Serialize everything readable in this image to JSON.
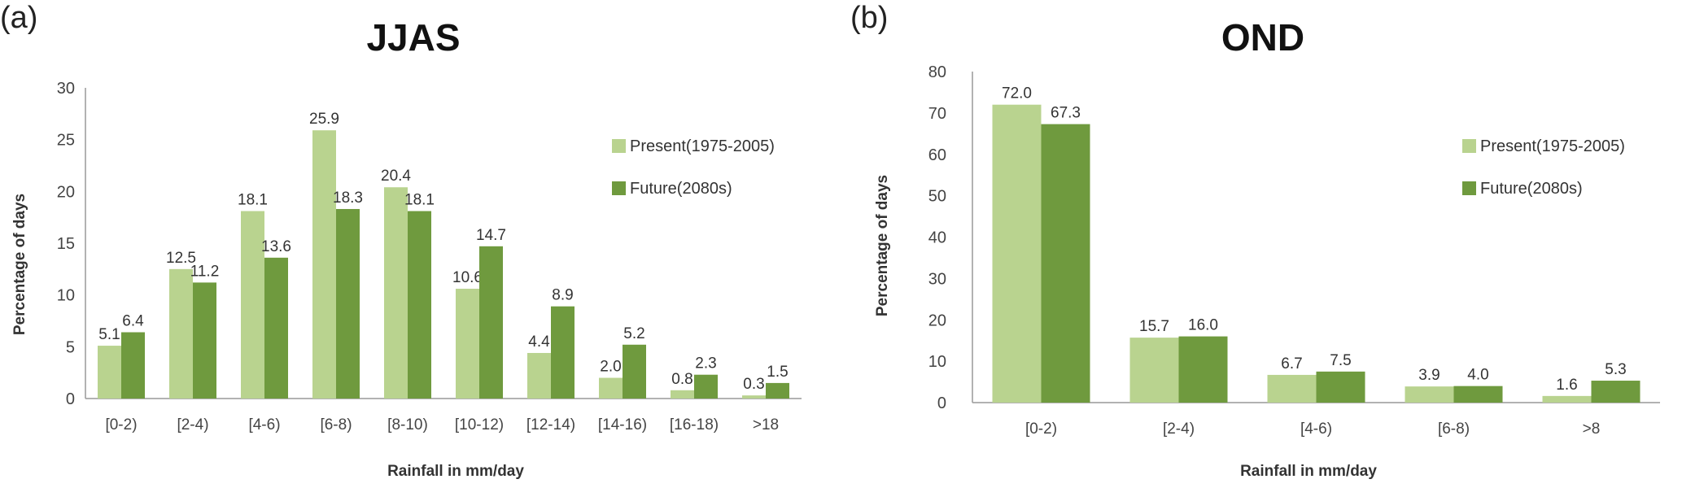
{
  "panels": [
    {
      "label": "(a)"
    },
    {
      "label": "(b)"
    }
  ],
  "chart_data": [
    {
      "type": "bar",
      "title": "JJAS",
      "xlabel": "Rainfall in mm/day",
      "ylabel": "Percentage of days",
      "ylim": [
        0,
        30
      ],
      "yticks": [
        0,
        5,
        10,
        15,
        20,
        25,
        30
      ],
      "categories": [
        "[0-2)",
        "[2-4)",
        "[4-6)",
        "[6-8)",
        "[8-10)",
        "[10-12)",
        "[12-14)",
        "[14-16)",
        "[16-18)",
        ">18"
      ],
      "series": [
        {
          "name": "Present(1975-2005)",
          "color": "#b9d38f",
          "values": [
            5.1,
            12.5,
            18.1,
            25.9,
            20.4,
            10.6,
            4.4,
            2.0,
            0.8,
            0.3
          ]
        },
        {
          "name": "Future(2080s)",
          "color": "#6f9a3e",
          "values": [
            6.4,
            11.2,
            13.6,
            18.3,
            18.1,
            14.7,
            8.9,
            5.2,
            2.3,
            1.5
          ]
        }
      ],
      "legend": "right",
      "grid": false
    },
    {
      "type": "bar",
      "title": "OND",
      "xlabel": "Rainfall in mm/day",
      "ylabel": "Percentage of days",
      "ylim": [
        0,
        80
      ],
      "yticks": [
        0,
        10,
        20,
        30,
        40,
        50,
        60,
        70,
        80
      ],
      "categories": [
        "[0-2)",
        "[2-4)",
        "[4-6)",
        "[6-8)",
        ">8"
      ],
      "series": [
        {
          "name": "Present(1975-2005)",
          "color": "#b9d38f",
          "values": [
            72.0,
            15.7,
            6.7,
            3.9,
            1.6
          ]
        },
        {
          "name": "Future(2080s)",
          "color": "#6f9a3e",
          "values": [
            67.3,
            16.0,
            7.5,
            4.0,
            5.3
          ]
        }
      ],
      "legend": "right",
      "grid": false
    }
  ]
}
